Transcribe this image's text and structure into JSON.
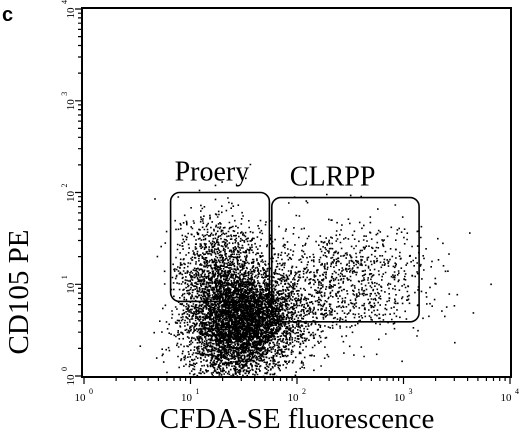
{
  "panel_label": "c",
  "chart_data": {
    "type": "scatter",
    "xlabel": "CFDA-SE fluorescence",
    "ylabel": "CD105 PE",
    "x_scale": "log",
    "y_scale": "log",
    "xlim": [
      1,
      10000
    ],
    "ylim": [
      1,
      10000
    ],
    "x_ticks": [
      {
        "value": 1,
        "base": "10",
        "exp": "0"
      },
      {
        "value": 10,
        "base": "10",
        "exp": "1"
      },
      {
        "value": 100,
        "base": "10",
        "exp": "2"
      },
      {
        "value": 1000,
        "base": "10",
        "exp": "3"
      },
      {
        "value": 10000,
        "base": "10",
        "exp": "4"
      }
    ],
    "y_ticks": [
      {
        "value": 1,
        "base": "10",
        "exp": "0"
      },
      {
        "value": 10,
        "base": "10",
        "exp": "1"
      },
      {
        "value": 100,
        "base": "10",
        "exp": "2"
      },
      {
        "value": 1000,
        "base": "10",
        "exp": "3"
      },
      {
        "value": 10000,
        "base": "10",
        "exp": "4"
      }
    ],
    "gates": [
      {
        "name": "Proery",
        "x_range": [
          6.5,
          55
        ],
        "y_range": [
          6.5,
          100
        ]
      },
      {
        "name": "CLRPP",
        "x_range": [
          58,
          1400
        ],
        "y_range": [
          3.9,
          88
        ]
      }
    ],
    "populations": [
      {
        "center": [
          27,
          3.8
        ],
        "spread_decades": [
          0.22,
          0.28
        ],
        "count": 3400
      },
      {
        "center": [
          55,
          5.0
        ],
        "spread_decades": [
          0.22,
          0.18
        ],
        "count": 900
      },
      {
        "center": [
          18,
          12
        ],
        "spread_decades": [
          0.2,
          0.35
        ],
        "count": 1400
      },
      {
        "center": [
          150,
          10
        ],
        "spread_decades": [
          0.45,
          0.3
        ],
        "count": 900
      },
      {
        "center": [
          500,
          14
        ],
        "spread_decades": [
          0.35,
          0.28
        ],
        "count": 300
      },
      {
        "center": [
          30,
          2.0
        ],
        "spread_decades": [
          0.3,
          0.2
        ],
        "count": 600
      }
    ]
  }
}
